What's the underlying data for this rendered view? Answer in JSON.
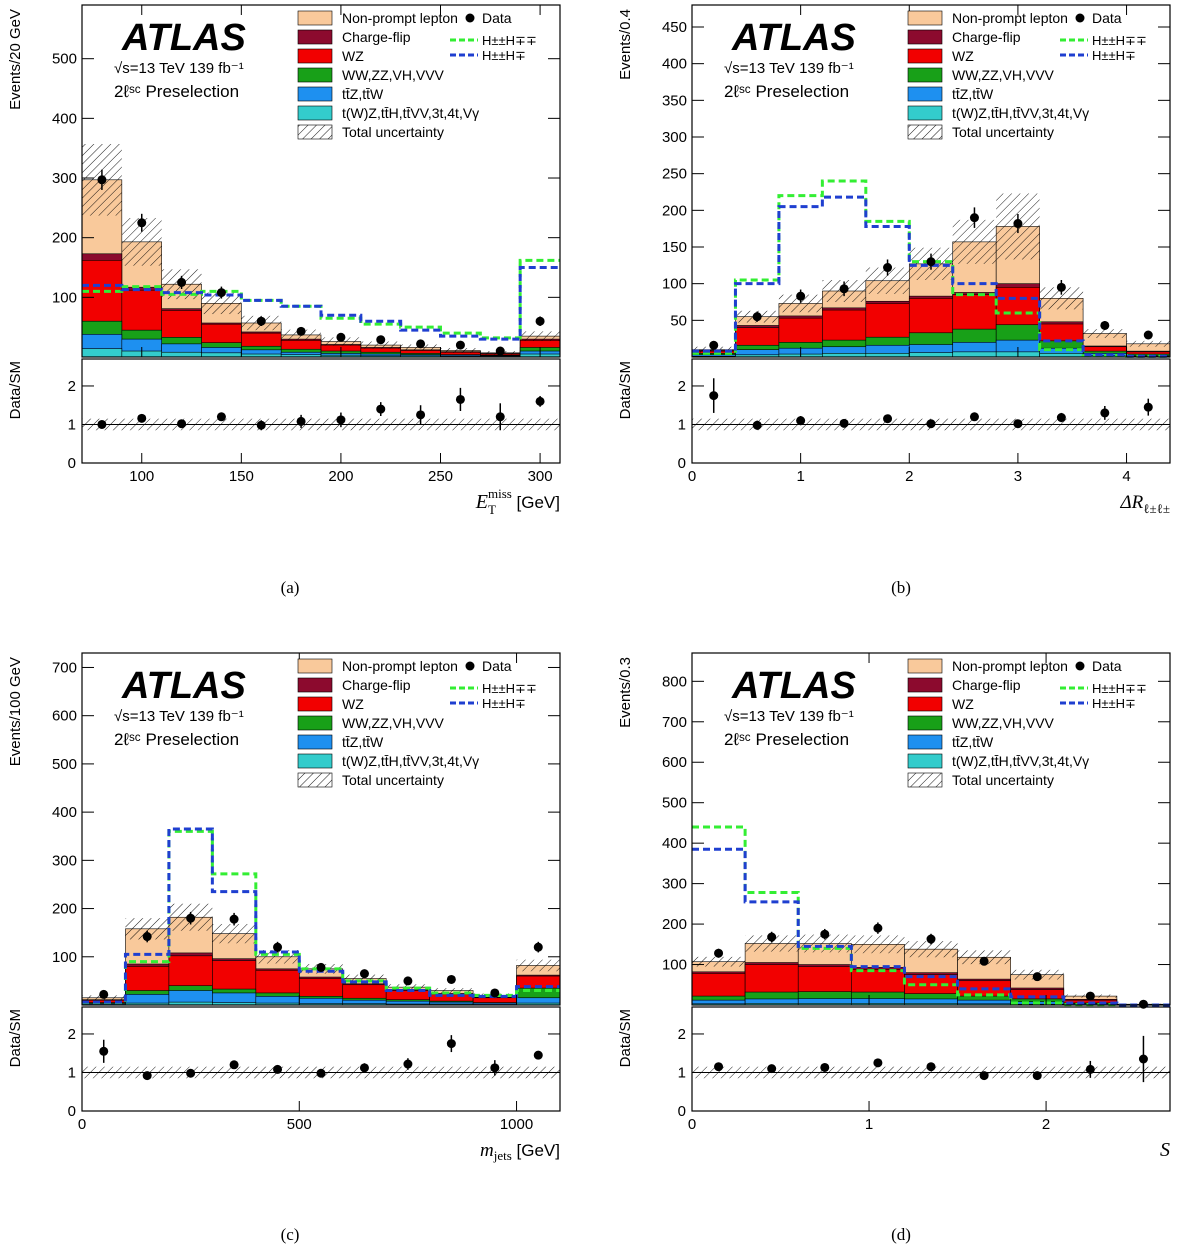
{
  "colors": {
    "nonprompt": "#F9C99B",
    "chargeflip": "#8C0A2E",
    "wz": "#F20000",
    "diboson": "#18A018",
    "ttv": "#1E90F0",
    "rare": "#33CCCC",
    "hpphmm": "#33EE33",
    "hpmhm": "#1F3FD0"
  },
  "legend": {
    "nonprompt": "Non-prompt lepton",
    "chargeflip": "Charge-flip",
    "wz": "WZ",
    "diboson": "WW,ZZ,VH,VVV",
    "ttv": "tt̄Z,tt̄W",
    "rare": "t(W)Z,tt̄H,tt̄VV,3t,4t,Vγ",
    "unc": "Total uncertainty",
    "data": "Data",
    "hpphmm": "H±±H∓∓",
    "hpmhm": "H±±H∓"
  },
  "atlas_label": "ATLAS",
  "energy_label": "√s=13 TeV 139 fb⁻¹",
  "region_label": "2ℓˢᶜ Preselection",
  "ratio_ylabel": "Data/SM",
  "panel_captions": [
    "(a)",
    "(b)",
    "(c)",
    "(d)"
  ],
  "chart_data": [
    {
      "type": "bar",
      "title": "",
      "ylabel": "Events/20 GeV",
      "xlabel": "E_T^miss [GeV]",
      "bin_edges": [
        70,
        90,
        110,
        130,
        150,
        170,
        190,
        210,
        230,
        250,
        270,
        290,
        310
      ],
      "xlim": [
        70,
        310
      ],
      "ylim": [
        0,
        590
      ],
      "xticks": [
        100,
        150,
        200,
        250,
        300
      ],
      "yticks": [
        100,
        200,
        300,
        400,
        500
      ],
      "stack": {
        "rare": [
          14,
          10,
          8,
          7,
          5,
          4,
          3,
          2,
          2,
          1,
          1,
          5
        ],
        "ttv": [
          38,
          30,
          22,
          16,
          12,
          8,
          6,
          5,
          4,
          3,
          2,
          10
        ],
        "diboson": [
          60,
          45,
          33,
          24,
          18,
          13,
          10,
          8,
          6,
          4,
          3,
          16
        ],
        "wz": [
          162,
          112,
          78,
          55,
          40,
          28,
          20,
          15,
          11,
          8,
          5,
          28
        ],
        "chargeflip": [
          173,
          117,
          81,
          57,
          42,
          30,
          21,
          16,
          12,
          9,
          6,
          30
        ],
        "nonprompt": [
          297,
          193,
          122,
          90,
          57,
          37,
          26,
          20,
          16,
          11,
          7,
          35
        ]
      },
      "unc_half": [
        60,
        40,
        25,
        18,
        12,
        9,
        7,
        6,
        5,
        4,
        3,
        8
      ],
      "data": {
        "x": [
          80,
          100,
          120,
          140,
          160,
          180,
          200,
          220,
          240,
          260,
          280,
          300
        ],
        "y": [
          297,
          225,
          125,
          108,
          60,
          43,
          33,
          29,
          22,
          20,
          10,
          60
        ],
        "err": [
          17,
          15,
          11,
          10,
          8,
          7,
          6,
          5,
          5,
          4,
          3,
          8
        ]
      },
      "signal_hpphmm": [
        110,
        118,
        105,
        110,
        95,
        85,
        65,
        55,
        50,
        40,
        32,
        162
      ],
      "signal_hpmhm": [
        120,
        113,
        108,
        104,
        95,
        85,
        70,
        60,
        45,
        35,
        30,
        150
      ],
      "ratio": {
        "ylim": [
          0,
          2.7
        ],
        "yticks": [
          0,
          1,
          2
        ],
        "y": [
          1.0,
          1.16,
          1.02,
          1.2,
          0.98,
          1.08,
          1.12,
          1.4,
          1.25,
          1.65,
          1.2,
          1.6
        ],
        "err": [
          0.07,
          0.08,
          0.1,
          0.1,
          0.13,
          0.17,
          0.19,
          0.18,
          0.25,
          0.3,
          0.35,
          0.14
        ],
        "unc": 0.15
      }
    },
    {
      "type": "bar",
      "title": "",
      "ylabel": "Events/0.4",
      "xlabel": "ΔR_ℓ±ℓ±",
      "bin_edges": [
        0,
        0.4,
        0.8,
        1.2,
        1.6,
        2.0,
        2.4,
        2.8,
        3.2,
        3.6,
        4.0,
        4.4
      ],
      "xlim": [
        0,
        4.4
      ],
      "ylim": [
        0,
        480
      ],
      "xticks": [
        0,
        1,
        2,
        3,
        4
      ],
      "yticks": [
        50,
        100,
        150,
        200,
        250,
        300,
        350,
        400,
        450
      ],
      "stack": {
        "rare": [
          1,
          3,
          4,
          5,
          5,
          6,
          7,
          7,
          5,
          2,
          1
        ],
        "ttv": [
          3,
          10,
          12,
          14,
          16,
          17,
          20,
          23,
          12,
          5,
          2
        ],
        "diboson": [
          5,
          16,
          20,
          23,
          27,
          33,
          38,
          44,
          22,
          8,
          4
        ],
        "wz": [
          8,
          40,
          53,
          64,
          73,
          80,
          85,
          95,
          45,
          14,
          7
        ],
        "chargeflip": [
          9,
          43,
          56,
          67,
          76,
          83,
          88,
          100,
          48,
          15,
          8
        ],
        "nonprompt": [
          10,
          55,
          73,
          90,
          104,
          127,
          157,
          178,
          80,
          32,
          18
        ]
      },
      "unc_half": [
        4,
        8,
        12,
        15,
        18,
        22,
        30,
        45,
        15,
        6,
        4
      ],
      "data": {
        "x": [
          0.2,
          0.6,
          1.0,
          1.4,
          1.8,
          2.2,
          2.6,
          3.0,
          3.4,
          3.8,
          4.2
        ],
        "y": [
          16,
          55,
          83,
          93,
          122,
          130,
          190,
          182,
          95,
          43,
          30
        ],
        "err": [
          4,
          7,
          9,
          10,
          11,
          11,
          14,
          13,
          10,
          6,
          5
        ]
      },
      "signal_hpphmm": [
        5,
        105,
        220,
        240,
        185,
        130,
        85,
        60,
        10,
        2,
        1
      ],
      "signal_hpmhm": [
        8,
        100,
        205,
        218,
        178,
        125,
        100,
        80,
        22,
        3,
        1
      ],
      "ratio": {
        "ylim": [
          0,
          2.7
        ],
        "yticks": [
          0,
          1,
          2
        ],
        "y": [
          1.75,
          0.98,
          1.1,
          1.03,
          1.15,
          1.02,
          1.2,
          1.02,
          1.18,
          1.3,
          1.45
        ],
        "err": [
          0.45,
          0.12,
          0.12,
          0.11,
          0.1,
          0.09,
          0.1,
          0.08,
          0.12,
          0.18,
          0.22
        ],
        "unc": 0.15
      }
    },
    {
      "type": "bar",
      "title": "",
      "ylabel": "Events/100 GeV",
      "xlabel": "m_jets [GeV]",
      "bin_edges": [
        0,
        100,
        200,
        300,
        400,
        500,
        600,
        700,
        800,
        900,
        1000,
        1100
      ],
      "xlim": [
        0,
        1100
      ],
      "ylim": [
        0,
        730
      ],
      "xticks": [
        0,
        500,
        1000
      ],
      "yticks": [
        100,
        200,
        300,
        400,
        500,
        600,
        700
      ],
      "stack": {
        "rare": [
          1,
          4,
          6,
          5,
          4,
          3,
          3,
          2,
          2,
          1,
          4
        ],
        "ttv": [
          3,
          22,
          30,
          25,
          18,
          14,
          10,
          8,
          6,
          4,
          15
        ],
        "diboson": [
          5,
          30,
          40,
          33,
          25,
          18,
          14,
          11,
          8,
          5,
          35
        ],
        "wz": [
          10,
          80,
          102,
          92,
          72,
          55,
          42,
          30,
          22,
          15,
          60
        ],
        "chargeflip": [
          11,
          85,
          108,
          96,
          75,
          58,
          44,
          32,
          24,
          16,
          62
        ],
        "nonprompt": [
          15,
          158,
          182,
          148,
          100,
          75,
          55,
          37,
          30,
          20,
          82
        ]
      },
      "unc_half": [
        5,
        22,
        28,
        20,
        14,
        10,
        8,
        6,
        5,
        4,
        12
      ],
      "data": {
        "x": [
          50,
          150,
          250,
          350,
          450,
          550,
          650,
          750,
          850,
          950,
          1050
        ],
        "y": [
          22,
          142,
          180,
          178,
          120,
          78,
          65,
          50,
          53,
          25,
          120
        ],
        "err": [
          5,
          12,
          13,
          13,
          11,
          9,
          8,
          7,
          7,
          5,
          11
        ]
      },
      "signal_hpphmm": [
        5,
        90,
        360,
        272,
        105,
        75,
        50,
        35,
        25,
        20,
        30
      ],
      "signal_hpmhm": [
        6,
        105,
        365,
        235,
        110,
        70,
        48,
        30,
        20,
        18,
        38
      ],
      "ratio": {
        "ylim": [
          0,
          2.7
        ],
        "yticks": [
          0,
          1,
          2
        ],
        "y": [
          1.55,
          0.92,
          0.98,
          1.2,
          1.08,
          0.98,
          1.12,
          1.22,
          1.75,
          1.12,
          1.45
        ],
        "err": [
          0.3,
          0.08,
          0.08,
          0.08,
          0.09,
          0.1,
          0.12,
          0.15,
          0.22,
          0.2,
          0.09
        ],
        "unc": 0.15
      }
    },
    {
      "type": "bar",
      "title": "",
      "ylabel": "Events/0.3",
      "xlabel": "S",
      "bin_edges": [
        0,
        0.3,
        0.6,
        0.9,
        1.2,
        1.5,
        1.8,
        2.1,
        2.4,
        2.7
      ],
      "xlim": [
        0,
        2.7
      ],
      "ylim": [
        0,
        870
      ],
      "xticks": [
        0,
        1,
        2
      ],
      "yticks": [
        100,
        200,
        300,
        400,
        500,
        600,
        700,
        800
      ],
      "stack": {
        "rare": [
          3,
          4,
          4,
          4,
          4,
          3,
          2,
          1,
          0
        ],
        "ttv": [
          12,
          15,
          16,
          16,
          15,
          12,
          8,
          3,
          0
        ],
        "diboson": [
          22,
          32,
          33,
          32,
          28,
          22,
          15,
          5,
          0
        ],
        "wz": [
          78,
          100,
          95,
          88,
          75,
          60,
          38,
          12,
          1
        ],
        "chargeflip": [
          82,
          105,
          100,
          93,
          80,
          64,
          42,
          14,
          1
        ],
        "nonprompt": [
          107,
          152,
          152,
          150,
          138,
          118,
          75,
          22,
          2
        ]
      },
      "unc_half": [
        12,
        20,
        22,
        22,
        20,
        17,
        12,
        4,
        1
      ],
      "data": {
        "x": [
          0.15,
          0.45,
          0.75,
          1.05,
          1.35,
          1.65,
          1.95,
          2.25,
          2.55
        ],
        "y": [
          128,
          168,
          175,
          190,
          163,
          108,
          70,
          22,
          2
        ],
        "err": [
          11,
          13,
          13,
          14,
          13,
          10,
          8,
          5,
          2
        ]
      },
      "signal_hpphmm": [
        440,
        278,
        140,
        85,
        50,
        25,
        5,
        1,
        0
      ],
      "signal_hpmhm": [
        385,
        255,
        145,
        95,
        70,
        40,
        20,
        5,
        0
      ],
      "ratio": {
        "ylim": [
          0,
          2.7
        ],
        "yticks": [
          0,
          1,
          2
        ],
        "y": [
          1.15,
          1.1,
          1.13,
          1.25,
          1.15,
          0.92,
          0.92,
          1.08,
          1.35
        ],
        "err": [
          0.07,
          0.07,
          0.07,
          0.07,
          0.08,
          0.08,
          0.1,
          0.22,
          0.6
        ],
        "unc": 0.15
      }
    }
  ]
}
